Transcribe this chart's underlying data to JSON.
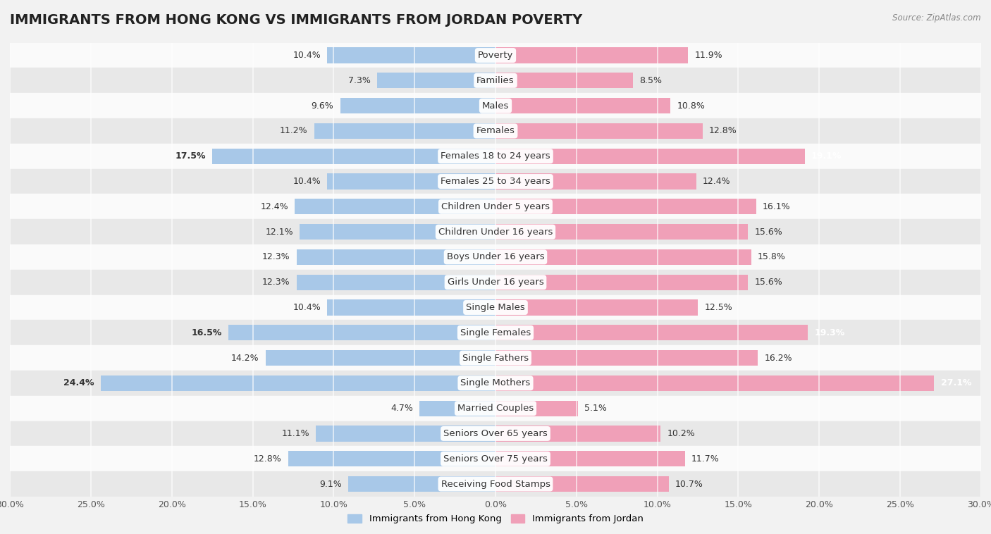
{
  "title": "IMMIGRANTS FROM HONG KONG VS IMMIGRANTS FROM JORDAN POVERTY",
  "source": "Source: ZipAtlas.com",
  "categories": [
    "Poverty",
    "Families",
    "Males",
    "Females",
    "Females 18 to 24 years",
    "Females 25 to 34 years",
    "Children Under 5 years",
    "Children Under 16 years",
    "Boys Under 16 years",
    "Girls Under 16 years",
    "Single Males",
    "Single Females",
    "Single Fathers",
    "Single Mothers",
    "Married Couples",
    "Seniors Over 65 years",
    "Seniors Over 75 years",
    "Receiving Food Stamps"
  ],
  "hk_values": [
    10.4,
    7.3,
    9.6,
    11.2,
    17.5,
    10.4,
    12.4,
    12.1,
    12.3,
    12.3,
    10.4,
    16.5,
    14.2,
    24.4,
    4.7,
    11.1,
    12.8,
    9.1
  ],
  "jordan_values": [
    11.9,
    8.5,
    10.8,
    12.8,
    19.1,
    12.4,
    16.1,
    15.6,
    15.8,
    15.6,
    12.5,
    19.3,
    16.2,
    27.1,
    5.1,
    10.2,
    11.7,
    10.7
  ],
  "hk_color": "#a8c8e8",
  "jordan_color": "#f0a0b8",
  "hk_label": "Immigrants from Hong Kong",
  "jordan_label": "Immigrants from Jordan",
  "bg_color": "#f2f2f2",
  "row_color_light": "#fafafa",
  "row_color_dark": "#e8e8e8",
  "xlim": 30.0,
  "bar_height": 0.62,
  "title_fontsize": 14,
  "label_fontsize": 9.5,
  "tick_fontsize": 9,
  "value_label_fontsize": 9,
  "bold_hk_indices": [
    4,
    11,
    13
  ],
  "bold_jordan_indices": [
    4,
    11,
    13
  ]
}
